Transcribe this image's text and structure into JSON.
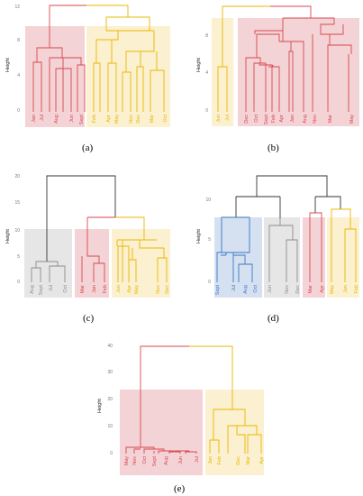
{
  "chart_data": [
    {
      "type": "dendrogram",
      "panel_label": "(a)",
      "ylabel": "Height",
      "ylim": [
        0,
        12.5
      ],
      "yticks": [
        0,
        4,
        8,
        12
      ],
      "colors": {
        "red": "#d9474f",
        "yellow": "#e8b800"
      },
      "clusters": [
        {
          "color": "red",
          "box": "#f3d3d6",
          "leaves": [
            "Jan",
            "Jul",
            "Aug",
            "Jun",
            "Sept"
          ]
        },
        {
          "color": "yellow",
          "box": "#fbf0cf",
          "leaves": [
            "Feb",
            "Apr",
            "May",
            "Nov",
            "Dec",
            "Mar",
            "Oct"
          ]
        }
      ],
      "merge_heights": [
        12.1,
        8.9,
        7.2,
        9.2,
        7.5
      ]
    },
    {
      "type": "dendrogram",
      "panel_label": "(b)",
      "ylabel": "Height",
      "ylim": [
        0,
        10.5
      ],
      "yticks": [
        0,
        4,
        8
      ],
      "colors": {
        "red": "#d9474f",
        "yellow": "#e8b800"
      },
      "clusters": [
        {
          "color": "yellow",
          "box": "#fbf0cf",
          "leaves": [
            "Jun",
            "Jul"
          ]
        },
        {
          "color": "red",
          "box": "#f3d3d6",
          "leaves": [
            "Dec",
            "Oct",
            "Sept",
            "Feb",
            "Apr",
            "Jan",
            "Aug",
            "Nov",
            "Mar",
            "May"
          ]
        }
      ],
      "merge_heights": [
        10.2,
        4.6,
        9.7,
        8.8,
        7.6
      ]
    },
    {
      "type": "dendrogram",
      "panel_label": "(c)",
      "ylabel": "Height",
      "ylim": [
        0,
        20.5
      ],
      "yticks": [
        0,
        5,
        10,
        15,
        20
      ],
      "colors": {
        "gray": "#8c8c8c",
        "red": "#d9474f",
        "yellow": "#e8b800",
        "root": "#333333"
      },
      "clusters": [
        {
          "color": "gray",
          "box": "#e6e6e6",
          "leaves": [
            "Aug",
            "Sept",
            "Jul",
            "Oct"
          ]
        },
        {
          "color": "red",
          "box": "#f3d3d6",
          "leaves": [
            "Mar",
            "Jan",
            "Feb"
          ]
        },
        {
          "color": "yellow",
          "box": "#fbf0cf",
          "leaves": [
            "Jun",
            "Apr",
            "May",
            "Nov",
            "Dec"
          ]
        }
      ],
      "merge_heights": [
        19.8,
        3.5,
        12.0,
        4.8,
        7.5
      ]
    },
    {
      "type": "dendrogram",
      "panel_label": "(d)",
      "ylabel": "Height",
      "ylim": [
        0,
        11
      ],
      "yticks": [
        0,
        5,
        10
      ],
      "colors": {
        "blue": "#3a78c2",
        "gray": "#8c8c8c",
        "red": "#d9474f",
        "yellow": "#e8b800",
        "root": "#333333"
      },
      "clusters": [
        {
          "color": "blue",
          "box": "#d5e1f1",
          "leaves": [
            "Sept",
            "Jul",
            "Aug",
            "Oct"
          ]
        },
        {
          "color": "gray",
          "box": "#e6e6e6",
          "leaves": [
            "Jun",
            "Nov",
            "Dec"
          ]
        },
        {
          "color": "red",
          "box": "#f3d3d6",
          "leaves": [
            "Mar",
            "Apr"
          ]
        },
        {
          "color": "yellow",
          "box": "#fbf0cf",
          "leaves": [
            "May",
            "Jan",
            "Feb"
          ]
        }
      ],
      "merge_heights": [
        10.5,
        8.2,
        7.8,
        6.6,
        8.0
      ]
    },
    {
      "type": "dendrogram",
      "panel_label": "(e)",
      "ylabel": "Height",
      "ylim": [
        0,
        42
      ],
      "yticks": [
        0,
        10,
        20,
        30,
        40
      ],
      "colors": {
        "red": "#d9474f",
        "yellow": "#e8b800"
      },
      "clusters": [
        {
          "color": "red",
          "box": "#f3d3d6",
          "leaves": [
            "May",
            "Nov",
            "Oct",
            "Sept",
            "Aug",
            "Jun",
            "Jul"
          ]
        },
        {
          "color": "yellow",
          "box": "#fbf0cf",
          "leaves": [
            "Jan",
            "Feb",
            "Dec",
            "Mar",
            "Apr"
          ]
        }
      ],
      "merge_heights": [
        39.5,
        2.0,
        16.0,
        9.5
      ]
    }
  ]
}
